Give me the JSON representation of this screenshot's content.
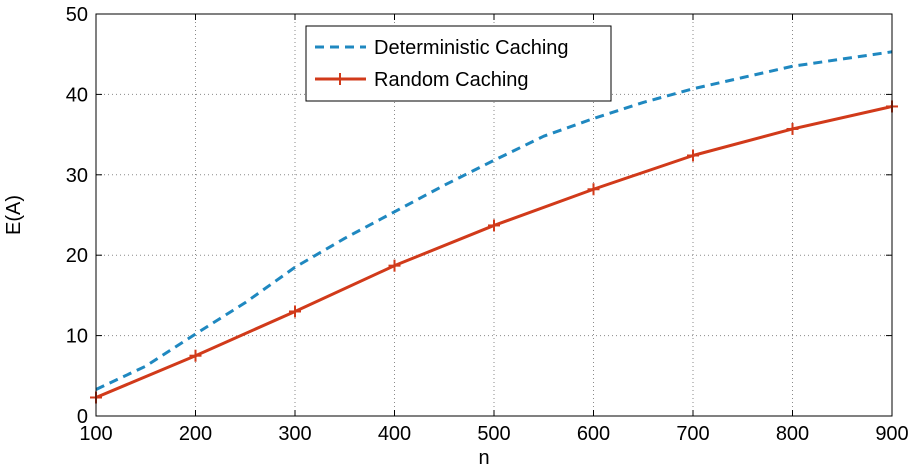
{
  "chart_data": {
    "type": "line",
    "xlabel": "n",
    "ylabel": "E(A)",
    "xlim": [
      100,
      900
    ],
    "ylim": [
      0,
      50
    ],
    "xticks": [
      "100",
      "200",
      "300",
      "400",
      "500",
      "600",
      "700",
      "800",
      "900"
    ],
    "yticks": [
      "0",
      "10",
      "20",
      "30",
      "40",
      "50"
    ],
    "grid": true,
    "legend_position": "top-center",
    "series": [
      {
        "name": "Deterministic Caching",
        "style": "dashed",
        "color": "#1f88c0",
        "x": [
          100,
          150,
          200,
          250,
          300,
          350,
          400,
          450,
          500,
          550,
          600,
          650,
          700,
          750,
          800,
          850,
          900
        ],
        "y": [
          3.3,
          6.2,
          10.2,
          14.1,
          18.5,
          22.1,
          25.4,
          28.7,
          31.8,
          34.8,
          37.0,
          39.0,
          40.7,
          42.1,
          43.5,
          44.4,
          45.3
        ]
      },
      {
        "name": "Random Caching",
        "style": "solid",
        "marker": "plus",
        "color": "#d13a1a",
        "x": [
          100,
          200,
          300,
          400,
          500,
          600,
          700,
          800,
          900
        ],
        "y": [
          2.3,
          7.5,
          13.0,
          18.7,
          23.7,
          28.2,
          32.4,
          35.7,
          38.5
        ]
      }
    ]
  }
}
